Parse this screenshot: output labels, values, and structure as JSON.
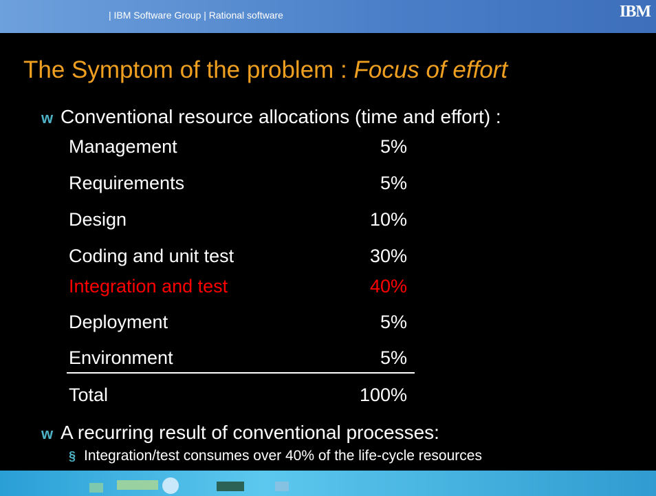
{
  "header": {
    "text": "| IBM Software Group  |  Rational software",
    "logo": "IBM"
  },
  "title": {
    "main": "The Symptom of the problem : ",
    "emphasis": "Focus of effort"
  },
  "bullets": [
    {
      "marker": "w",
      "text": "Conventional resource allocations (time and effort) :"
    },
    {
      "marker": "w",
      "text": "A recurring result of conventional processes:",
      "sub": {
        "marker": "§",
        "text": "Integration/test consumes over 40% of the life-cycle resources"
      }
    }
  ],
  "table": {
    "rows": [
      {
        "label": "Management",
        "value": "5%",
        "color": "#ffffff"
      },
      {
        "label": "Requirements",
        "value": "5%",
        "color": "#ffffff"
      },
      {
        "label": "Design",
        "value": "10%",
        "color": "#ffffff"
      },
      {
        "label": "Coding and unit test",
        "value": "30%",
        "color": "#ffffff"
      },
      {
        "label": "Integration and test",
        "value": "40%",
        "color": "#ff0000"
      },
      {
        "label": "Deployment",
        "value": "5%",
        "color": "#ffffff"
      },
      {
        "label": "Environment",
        "value": "5%",
        "color": "#ffffff",
        "underline": true
      },
      {
        "label": "Total",
        "value": "100%",
        "color": "#ffffff"
      }
    ]
  }
}
